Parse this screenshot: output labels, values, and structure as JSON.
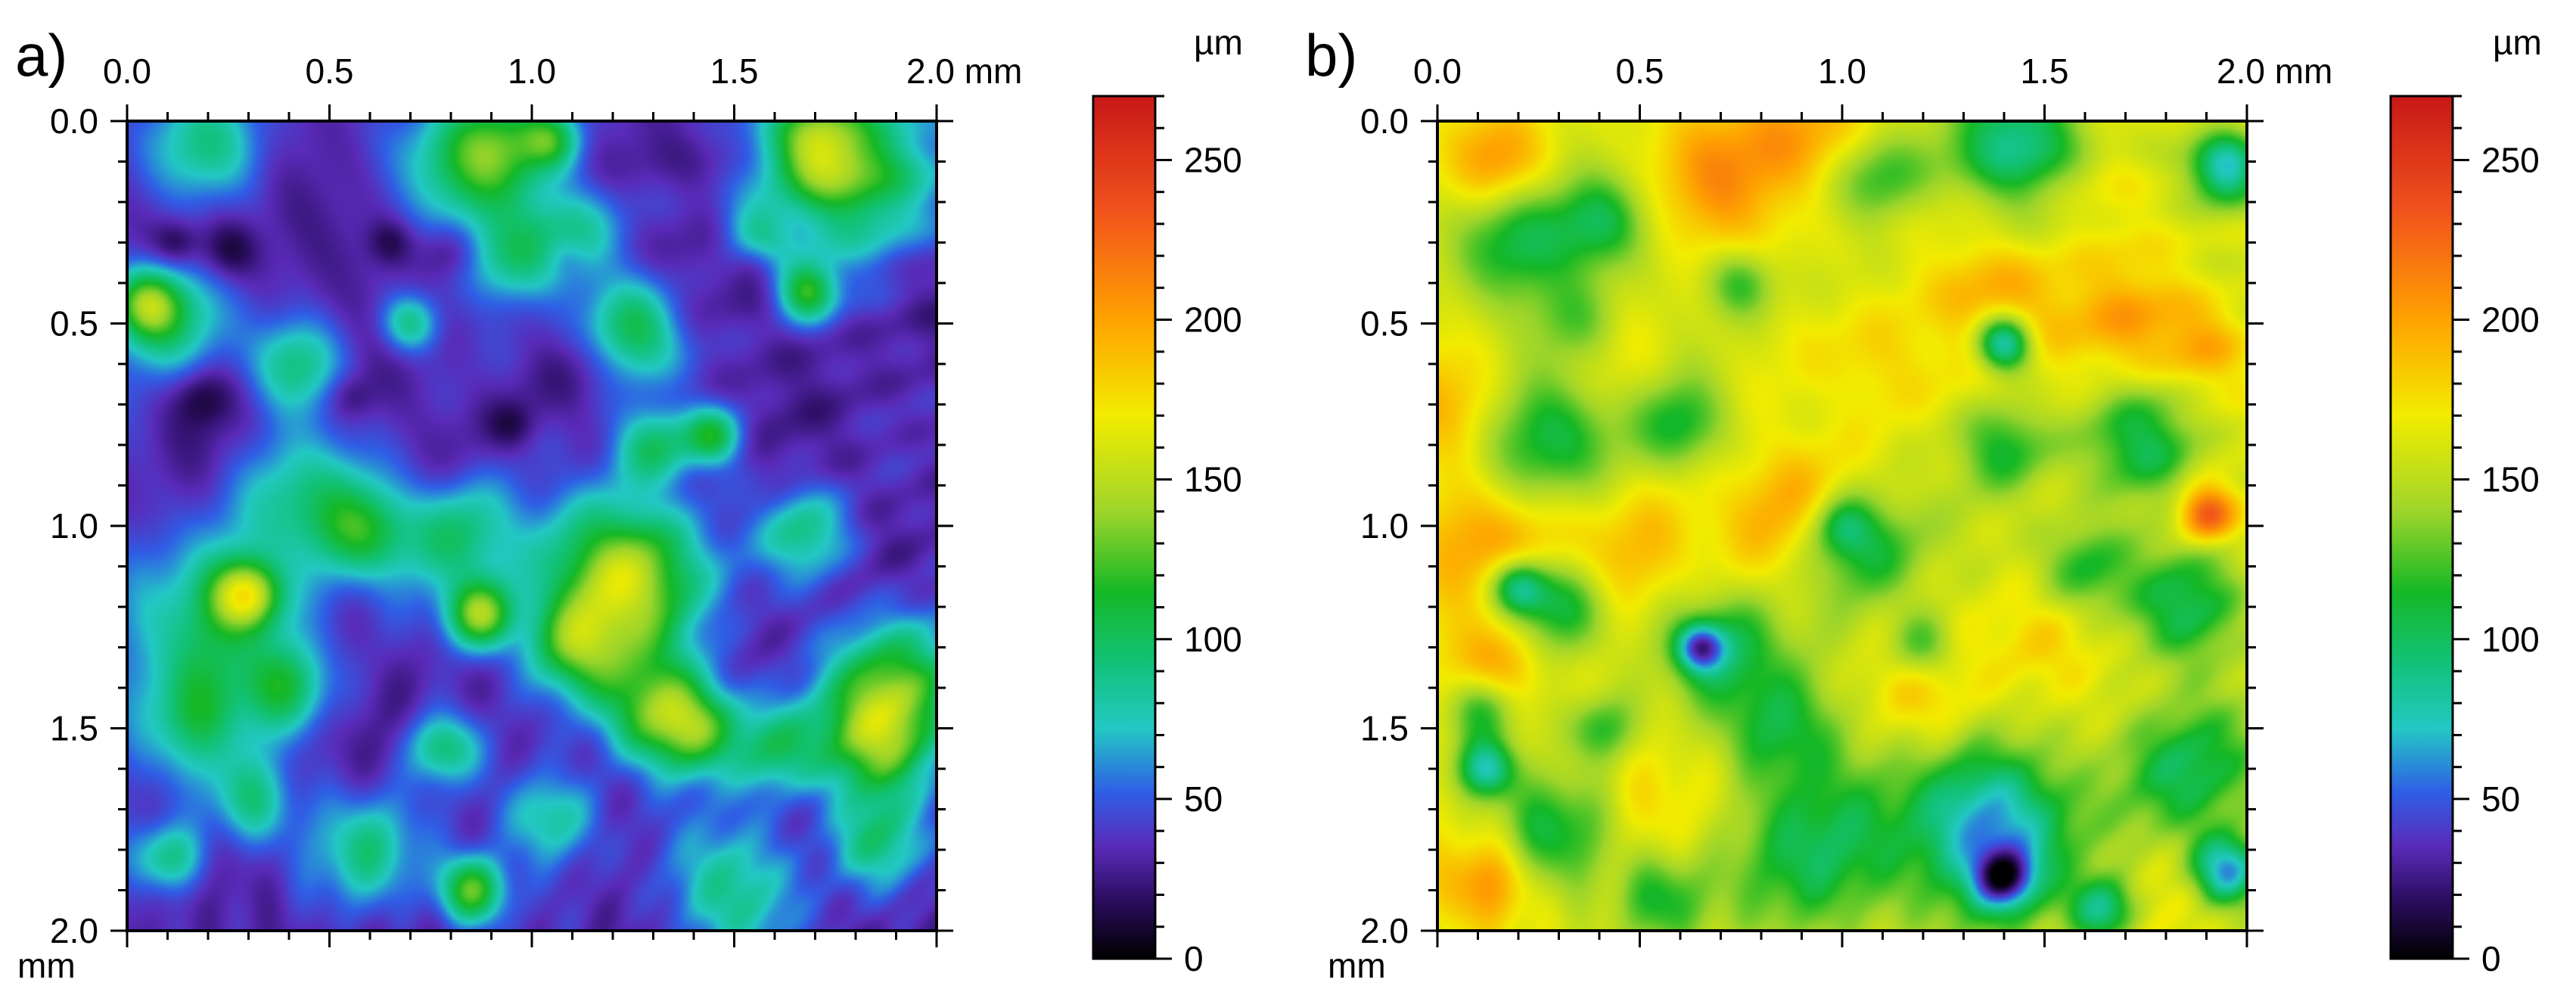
{
  "chart_data": [
    {
      "type": "heatmap",
      "panel_label": "a)",
      "x_axis": {
        "ticks": [
          "0.0",
          "0.5",
          "1.0",
          "1.5",
          "2.0 mm"
        ],
        "range": [
          0,
          2
        ]
      },
      "y_axis": {
        "ticks": [
          "0.0",
          "0.5",
          "1.0",
          "1.5",
          "2.0"
        ],
        "unit": "mm",
        "range": [
          0,
          2
        ]
      },
      "colorbar": {
        "unit": "µm",
        "ticks": [
          "0",
          "50",
          "100",
          "150",
          "200",
          "250"
        ],
        "range": [
          0,
          270
        ]
      },
      "base_height": 32,
      "features": [
        [
          0.85,
          0.12,
          0.12,
          55
        ],
        [
          0.92,
          0.08,
          0.1,
          60
        ],
        [
          1.8,
          0.12,
          0.14,
          90
        ],
        [
          1.7,
          0.06,
          0.08,
          65
        ],
        [
          1.05,
          0.05,
          0.05,
          55
        ],
        [
          0.2,
          0.06,
          0.1,
          50
        ],
        [
          0.05,
          0.45,
          0.06,
          80
        ],
        [
          0.12,
          0.5,
          0.1,
          55
        ],
        [
          1.25,
          0.52,
          0.08,
          75
        ],
        [
          1.68,
          0.42,
          0.05,
          80
        ],
        [
          0.95,
          0.35,
          0.08,
          50
        ],
        [
          0.42,
          0.6,
          0.08,
          55
        ],
        [
          1.3,
          0.8,
          0.07,
          60
        ],
        [
          1.45,
          0.78,
          0.05,
          70
        ],
        [
          0.45,
          0.95,
          0.12,
          60
        ],
        [
          0.6,
          1.02,
          0.08,
          55
        ],
        [
          0.82,
          1.02,
          0.1,
          60
        ],
        [
          1.25,
          1.1,
          0.12,
          65
        ],
        [
          1.2,
          1.18,
          0.15,
          70
        ],
        [
          0.3,
          1.17,
          0.06,
          100
        ],
        [
          0.87,
          1.22,
          0.06,
          100
        ],
        [
          0.2,
          1.25,
          0.15,
          60
        ],
        [
          1.68,
          1.02,
          0.08,
          55
        ],
        [
          1.3,
          1.45,
          0.1,
          70
        ],
        [
          1.4,
          1.5,
          0.08,
          75
        ],
        [
          1.9,
          1.4,
          0.12,
          90
        ],
        [
          1.85,
          1.55,
          0.1,
          75
        ],
        [
          1.6,
          1.55,
          0.08,
          60
        ],
        [
          0.15,
          1.48,
          0.1,
          55
        ],
        [
          0.4,
          1.4,
          0.08,
          55
        ],
        [
          0.78,
          1.55,
          0.06,
          60
        ],
        [
          0.85,
          1.9,
          0.06,
          95
        ],
        [
          0.6,
          1.8,
          0.1,
          55
        ],
        [
          1.05,
          1.72,
          0.08,
          55
        ],
        [
          0.1,
          1.82,
          0.06,
          60
        ],
        [
          1.5,
          1.9,
          0.12,
          55
        ],
        [
          1.85,
          1.78,
          0.08,
          55
        ],
        [
          0.7,
          0.5,
          0.05,
          55
        ],
        [
          1.1,
          0.3,
          0.08,
          50
        ],
        [
          1.55,
          0.28,
          0.06,
          50
        ],
        [
          0.3,
          1.68,
          0.08,
          55
        ],
        [
          1.1,
          1.3,
          0.08,
          60
        ]
      ],
      "pits": [
        [
          0.25,
          0.32,
          0.05,
          -24
        ],
        [
          0.12,
          0.3,
          0.04,
          -22
        ],
        [
          0.8,
          0.32,
          0.05,
          -26
        ],
        [
          0.65,
          0.3,
          0.04,
          -20
        ],
        [
          1.08,
          0.33,
          0.04,
          -20
        ],
        [
          0.18,
          0.68,
          0.05,
          -22
        ],
        [
          0.55,
          0.68,
          0.04,
          -18
        ],
        [
          1.55,
          0.35,
          0.04,
          -18
        ],
        [
          0.95,
          0.75,
          0.04,
          -16
        ]
      ]
    },
    {
      "type": "heatmap",
      "panel_label": "b)",
      "x_axis": {
        "ticks": [
          "0.0",
          "0.5",
          "1.0",
          "1.5",
          "2.0 mm"
        ],
        "range": [
          0,
          2
        ]
      },
      "y_axis": {
        "ticks": [
          "0.0",
          "0.5",
          "1.0",
          "1.5",
          "2.0"
        ],
        "unit": "mm",
        "range": [
          0,
          2
        ]
      },
      "colorbar": {
        "unit": "µm",
        "ticks": [
          "0",
          "50",
          "100",
          "150",
          "200",
          "250"
        ],
        "range": [
          0,
          270
        ]
      },
      "base_height": 160,
      "features": [
        [
          0.7,
          0.15,
          0.12,
          45
        ],
        [
          0.9,
          0.05,
          0.1,
          35
        ],
        [
          0.15,
          0.1,
          0.08,
          40
        ],
        [
          1.4,
          0.45,
          0.12,
          40
        ],
        [
          1.7,
          0.5,
          0.1,
          35
        ],
        [
          1.9,
          0.55,
          0.08,
          35
        ],
        [
          0.85,
          0.95,
          0.12,
          40
        ],
        [
          0.45,
          1.05,
          0.12,
          35
        ],
        [
          0.12,
          1.05,
          0.12,
          40
        ],
        [
          1.9,
          0.97,
          0.05,
          80
        ],
        [
          1.2,
          1.4,
          0.1,
          25
        ],
        [
          1.5,
          1.3,
          0.1,
          25
        ],
        [
          0.12,
          1.35,
          0.08,
          45
        ],
        [
          0.12,
          1.88,
          0.08,
          50
        ],
        [
          1.7,
          1.95,
          0.1,
          25
        ],
        [
          0.05,
          0.7,
          0.1,
          25
        ],
        [
          0.4,
          0.55,
          0.1,
          25
        ],
        [
          1.1,
          0.6,
          0.1,
          25
        ],
        [
          1.6,
          0.15,
          0.12,
          20
        ],
        [
          0.55,
          1.65,
          0.12,
          20
        ]
      ],
      "pits": [
        [
          0.2,
          0.3,
          0.1,
          -55
        ],
        [
          0.4,
          0.25,
          0.08,
          -50
        ],
        [
          0.35,
          0.5,
          0.08,
          -50
        ],
        [
          1.45,
          0.05,
          0.12,
          -80
        ],
        [
          1.95,
          0.12,
          0.06,
          -90
        ],
        [
          1.1,
          0.15,
          0.08,
          -40
        ],
        [
          1.4,
          0.55,
          0.05,
          -110
        ],
        [
          0.75,
          0.4,
          0.06,
          -45
        ],
        [
          0.3,
          0.8,
          0.12,
          -55
        ],
        [
          0.6,
          0.75,
          0.08,
          -50
        ],
        [
          1.75,
          0.8,
          0.1,
          -55
        ],
        [
          1.4,
          0.8,
          0.08,
          -50
        ],
        [
          0.3,
          1.2,
          0.08,
          -55
        ],
        [
          0.2,
          1.15,
          0.05,
          -85
        ],
        [
          0.7,
          1.3,
          0.1,
          -60
        ],
        [
          0.65,
          1.3,
          0.04,
          -90
        ],
        [
          1.05,
          1.05,
          0.1,
          -55
        ],
        [
          1.85,
          1.2,
          0.1,
          -55
        ],
        [
          1.85,
          1.6,
          0.12,
          -60
        ],
        [
          1.35,
          1.7,
          0.12,
          -55
        ],
        [
          1.4,
          1.8,
          0.14,
          -60
        ],
        [
          1.4,
          1.87,
          0.05,
          -100
        ],
        [
          0.95,
          1.8,
          0.15,
          -60
        ],
        [
          0.3,
          1.75,
          0.1,
          -50
        ],
        [
          0.12,
          1.45,
          0.06,
          -50
        ],
        [
          1.2,
          1.3,
          0.06,
          -50
        ],
        [
          0.85,
          1.5,
          0.1,
          -50
        ],
        [
          1.95,
          1.85,
          0.06,
          -100
        ],
        [
          0.12,
          1.6,
          0.05,
          -80
        ],
        [
          1.65,
          1.95,
          0.06,
          -90
        ],
        [
          1.0,
          1.0,
          0.05,
          -40
        ],
        [
          1.6,
          1.1,
          0.08,
          -50
        ],
        [
          0.4,
          1.5,
          0.06,
          -50
        ],
        [
          0.55,
          1.92,
          0.08,
          -50
        ]
      ]
    }
  ],
  "colormap": {
    "stops": [
      0,
      18,
      35,
      52,
      72,
      92,
      115,
      140,
      170,
      200,
      235,
      270
    ],
    "colors": [
      "#000000",
      "#2a0d5e",
      "#5a2ab8",
      "#2f5ee6",
      "#23c8c4",
      "#12c27a",
      "#15b825",
      "#9ed52a",
      "#f2ec00",
      "#ffa200",
      "#f0501c",
      "#c81818"
    ]
  }
}
